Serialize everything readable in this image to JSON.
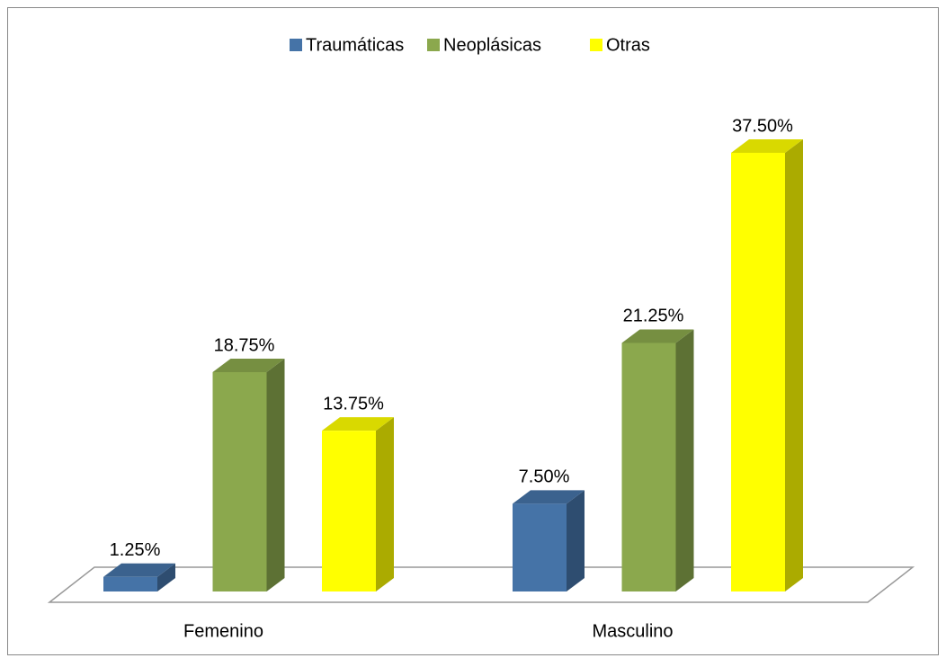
{
  "chart_data": {
    "type": "bar3d",
    "categories": [
      "Femenino",
      "Masculino"
    ],
    "series": [
      {
        "name": "Traumáticas",
        "color": "#4573a7",
        "values": [
          1.25,
          7.5
        ],
        "value_labels": [
          "1.25%",
          "7.50%"
        ]
      },
      {
        "name": "Neoplásicas",
        "color": "#8ba84d",
        "values": [
          18.75,
          21.25
        ],
        "value_labels": [
          "18.75%",
          "21.25%"
        ]
      },
      {
        "name": "Otras",
        "color": "#ffff00",
        "values": [
          13.75,
          37.5
        ],
        "value_labels": [
          "13.75%",
          "37.50%"
        ]
      }
    ],
    "legend": "top"
  }
}
